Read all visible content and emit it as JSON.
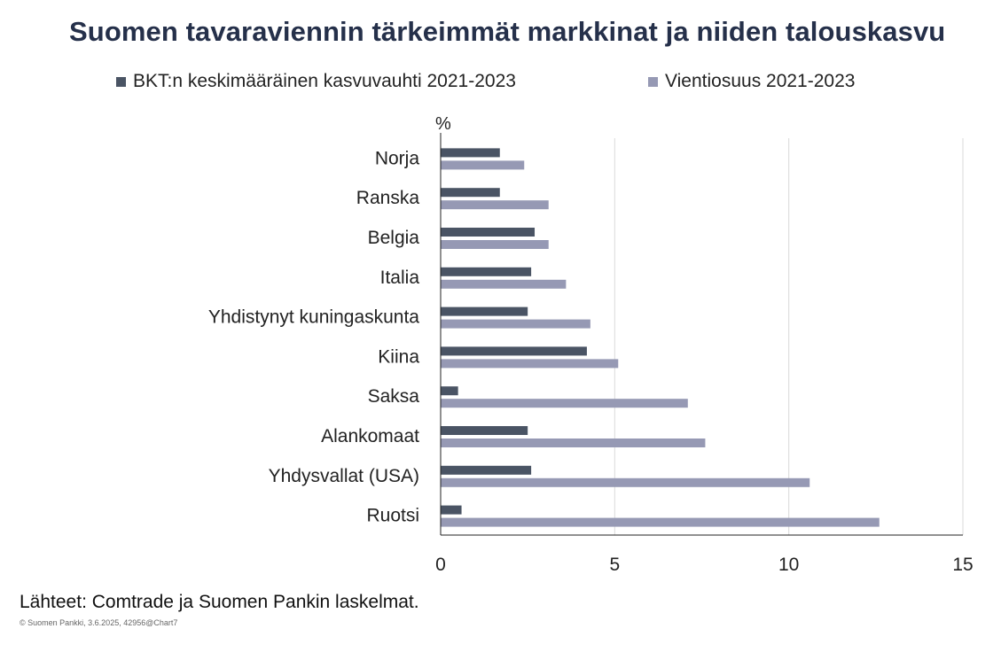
{
  "title": "Suomen tavaraviennin tärkeimmät markkinat ja niiden talouskasvu",
  "source": "Lähteet: Comtrade ja Suomen Pankin laskelmat.",
  "copyright": "© Suomen Pankki, 3.6.2025, 42956@Chart7",
  "colors": {
    "series1": "#4a5464",
    "series2": "#9699b4",
    "gridline": "#d9d9d9",
    "axis": "#222222",
    "title": "#25304a"
  },
  "chart_data": {
    "type": "bar",
    "orientation": "horizontal",
    "unit_label": "%",
    "categories": [
      "Norja",
      "Ranska",
      "Belgia",
      "Italia",
      "Yhdistynyt kuningaskunta",
      "Kiina",
      "Saksa",
      "Alankomaat",
      "Yhdysvallat (USA)",
      "Ruotsi"
    ],
    "series": [
      {
        "name": "BKT:n keskimääräinen kasvuvauhti 2021-2023",
        "values": [
          1.7,
          1.7,
          2.7,
          2.6,
          2.5,
          4.2,
          0.5,
          2.5,
          2.6,
          0.6
        ]
      },
      {
        "name": "Vientiosuus 2021-2023",
        "values": [
          2.4,
          3.1,
          3.1,
          3.6,
          4.3,
          5.1,
          7.1,
          7.6,
          10.6,
          12.6
        ]
      }
    ],
    "xlim": [
      0,
      15
    ],
    "xticks": [
      0,
      5,
      10,
      15
    ],
    "xgrid": true,
    "legend_position": "top"
  }
}
